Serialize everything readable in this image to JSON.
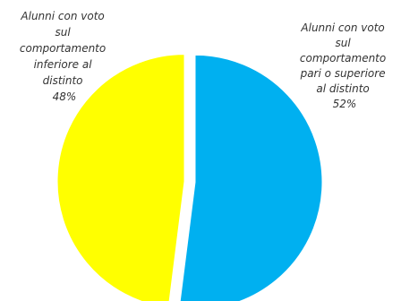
{
  "chart_data": {
    "type": "pie",
    "slices": [
      {
        "label_lines": [
          "Alunni con voto",
          "sul",
          "comportamento",
          "pari o superiore",
          "al distinto"
        ],
        "percent_label": "52%",
        "value": 52,
        "color": "#00B0F0"
      },
      {
        "label_lines": [
          "Alunni con voto",
          "sul",
          "comportamento",
          "inferiore al",
          "distinto"
        ],
        "percent_label": "48%",
        "value": 48,
        "color": "#FFFF00"
      }
    ],
    "legend": "none",
    "exploded": true
  }
}
